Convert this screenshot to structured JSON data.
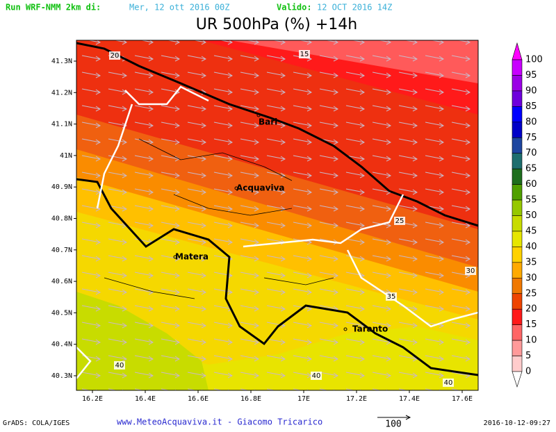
{
  "header": {
    "run_label": "Run WRF-NMM 2km di:",
    "run_date": "Mer, 12 ott 2016 00Z",
    "valid_label": "Valido:",
    "valid_date": "12 OCT 2016 14Z"
  },
  "title": "UR 500hPa (%) +14h",
  "map": {
    "lon_labels": [
      "16.2E",
      "16.4E",
      "16.6E",
      "16.8E",
      "17E",
      "17.2E",
      "17.4E",
      "17.6E"
    ],
    "lat_labels": [
      "41.3N",
      "41.2N",
      "41.1N",
      "41N",
      "40.9N",
      "40.8N",
      "40.7N",
      "40.6N",
      "40.5N",
      "40.4N",
      "40.3N"
    ],
    "cities": [
      "Bari",
      "Acquaviva",
      "Matera",
      "Taranto"
    ],
    "contour_labels": [
      20,
      15,
      25,
      30,
      35,
      40,
      40,
      40
    ]
  },
  "colorbar": {
    "levels": [
      100,
      95,
      90,
      85,
      80,
      75,
      70,
      65,
      60,
      55,
      50,
      45,
      40,
      35,
      30,
      25,
      20,
      15,
      10,
      5,
      0
    ],
    "colors": [
      "#ff00ff",
      "#c800ff",
      "#9b00e6",
      "#6e00dc",
      "#0000ff",
      "#0000c8",
      "#1e46a0",
      "#1e6e6e",
      "#1e6e1e",
      "#50a000",
      "#96c800",
      "#c8dc00",
      "#e6e600",
      "#ffd200",
      "#ffaa00",
      "#f07800",
      "#ee4400",
      "#ff1a1a",
      "#ff6666",
      "#ff9a9a",
      "#ffcccc",
      "#ffffff"
    ]
  },
  "footer": {
    "left": "GrADS: COLA/IGES",
    "center": "www.MeteoAcquaviva.it - Giacomo Tricarico",
    "vector": "100",
    "right": "2016-10-12-09:27"
  }
}
